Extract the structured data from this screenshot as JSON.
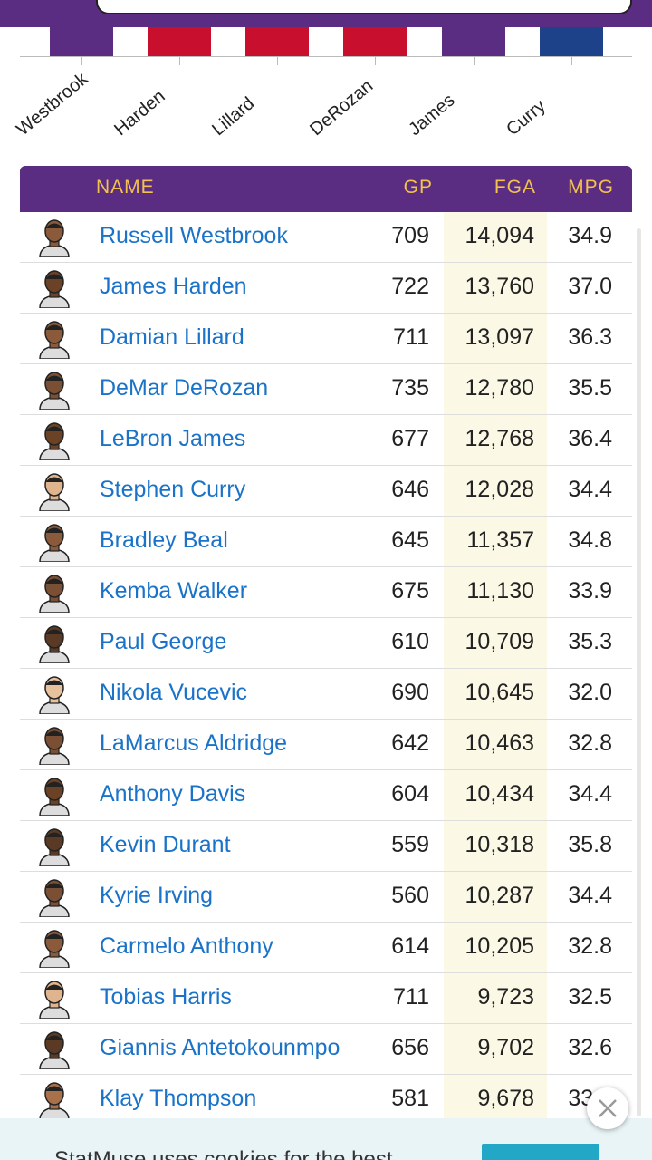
{
  "colors": {
    "header_purple": "#5a2d82",
    "header_text": "#f2c14e",
    "link_blue": "#1a73c8",
    "fga_highlight": "#fbf8e6",
    "bar_purple": "#5a2d82",
    "bar_red": "#c8102e",
    "bar_blue": "#1d428a"
  },
  "chart": {
    "labels": [
      "Westbrook",
      "Harden",
      "Lillard",
      "DeRozan",
      "James",
      "Curry"
    ],
    "bar_colors": [
      "#5a2d82",
      "#c8102e",
      "#c8102e",
      "#c8102e",
      "#5a2d82",
      "#1d428a"
    ]
  },
  "table": {
    "headers": {
      "name": "NAME",
      "gp": "GP",
      "fga": "FGA",
      "mpg": "MPG"
    },
    "rows": [
      {
        "name": "Russell Westbrook",
        "gp": "709",
        "fga": "14,094",
        "mpg": "34.9"
      },
      {
        "name": "James Harden",
        "gp": "722",
        "fga": "13,760",
        "mpg": "37.0"
      },
      {
        "name": "Damian Lillard",
        "gp": "711",
        "fga": "13,097",
        "mpg": "36.3"
      },
      {
        "name": "DeMar DeRozan",
        "gp": "735",
        "fga": "12,780",
        "mpg": "35.5"
      },
      {
        "name": "LeBron James",
        "gp": "677",
        "fga": "12,768",
        "mpg": "36.4"
      },
      {
        "name": "Stephen Curry",
        "gp": "646",
        "fga": "12,028",
        "mpg": "34.4"
      },
      {
        "name": "Bradley Beal",
        "gp": "645",
        "fga": "11,357",
        "mpg": "34.8"
      },
      {
        "name": "Kemba Walker",
        "gp": "675",
        "fga": "11,130",
        "mpg": "33.9"
      },
      {
        "name": "Paul George",
        "gp": "610",
        "fga": "10,709",
        "mpg": "35.3"
      },
      {
        "name": "Nikola Vucevic",
        "gp": "690",
        "fga": "10,645",
        "mpg": "32.0"
      },
      {
        "name": "LaMarcus Aldridge",
        "gp": "642",
        "fga": "10,463",
        "mpg": "32.8"
      },
      {
        "name": "Anthony Davis",
        "gp": "604",
        "fga": "10,434",
        "mpg": "34.4"
      },
      {
        "name": "Kevin Durant",
        "gp": "559",
        "fga": "10,318",
        "mpg": "35.8"
      },
      {
        "name": "Kyrie Irving",
        "gp": "560",
        "fga": "10,287",
        "mpg": "34.4"
      },
      {
        "name": "Carmelo Anthony",
        "gp": "614",
        "fga": "10,205",
        "mpg": "32.8"
      },
      {
        "name": "Tobias Harris",
        "gp": "711",
        "fga": "9,723",
        "mpg": "32.5"
      },
      {
        "name": "Giannis Antetokounmpo",
        "gp": "656",
        "fga": "9,702",
        "mpg": "32.6"
      },
      {
        "name": "Klay Thompson",
        "gp": "581",
        "fga": "9,678",
        "mpg": "33.6"
      }
    ]
  },
  "cookie_banner": {
    "text": "StatMuse uses cookies for the best",
    "close_icon": "close-icon"
  }
}
